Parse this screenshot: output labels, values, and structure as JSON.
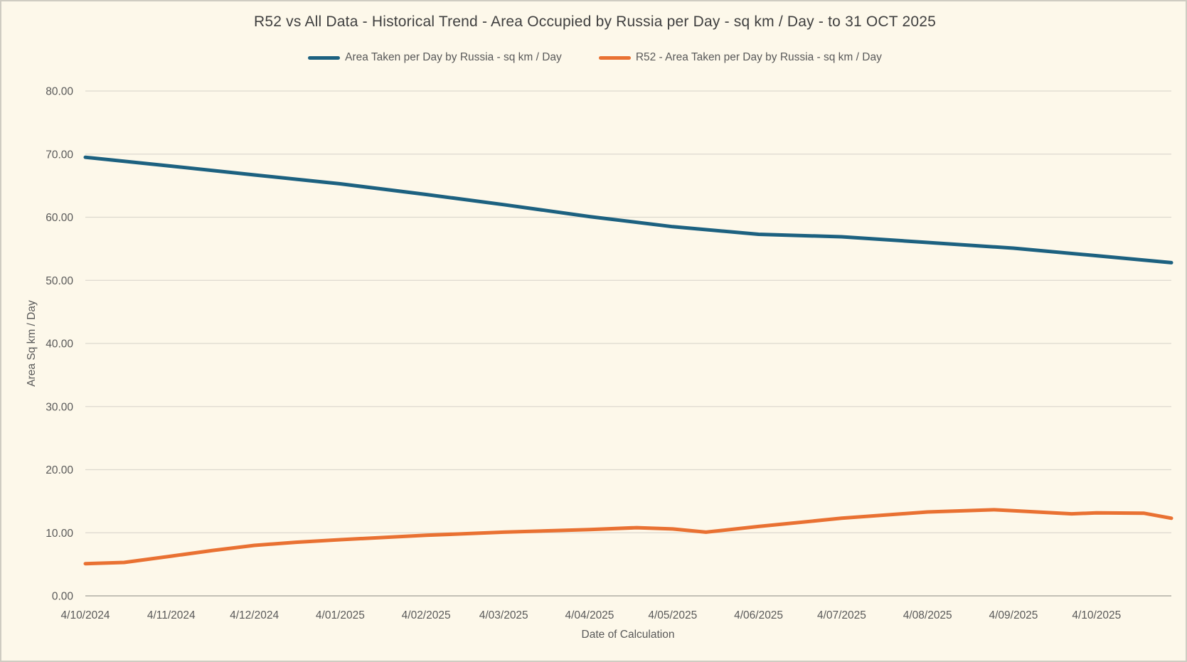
{
  "window": {
    "background_color": "#FDF8EA",
    "border_color": "#CFCCC2",
    "gridline_color": "#DDD9CF",
    "axis_line_color": "#C3C0B6",
    "label_color": "#595959",
    "title_color": "#3F3F3F"
  },
  "chart_data": {
    "type": "line",
    "title": "R52 vs All Data - Historical Trend - Area Occupied by Russia per Day - sq km / Day - to 31 OCT 2025",
    "xlabel": "Date of Calculation",
    "ylabel": "Area Sq km / Day",
    "ylim": [
      0,
      80
    ],
    "y_tick_step": 10,
    "y_tick_labels": [
      "0.00",
      "10.00",
      "20.00",
      "30.00",
      "40.00",
      "50.00",
      "60.00",
      "70.00",
      "80.00"
    ],
    "x_range": [
      "2024-10-04",
      "2025-10-31"
    ],
    "x_ticks": [
      {
        "label": "4/10/2024",
        "date": "2024-10-04"
      },
      {
        "label": "4/11/2024",
        "date": "2024-11-04"
      },
      {
        "label": "4/12/2024",
        "date": "2024-12-04"
      },
      {
        "label": "4/01/2025",
        "date": "2025-01-04"
      },
      {
        "label": "4/02/2025",
        "date": "2025-02-04"
      },
      {
        "label": "4/03/2025",
        "date": "2025-03-04"
      },
      {
        "label": "4/04/2025",
        "date": "2025-04-04"
      },
      {
        "label": "4/05/2025",
        "date": "2025-05-04"
      },
      {
        "label": "4/06/2025",
        "date": "2025-06-04"
      },
      {
        "label": "4/07/2025",
        "date": "2025-07-04"
      },
      {
        "label": "4/08/2025",
        "date": "2025-08-04"
      },
      {
        "label": "4/09/2025",
        "date": "2025-09-04"
      },
      {
        "label": "4/10/2025",
        "date": "2025-10-04"
      }
    ],
    "grid": true,
    "legend_position": "top",
    "series": [
      {
        "name": "Area Taken per Day by Russia - sq km / Day",
        "color": "#1C6180",
        "points": [
          [
            "2024-10-04",
            69.5
          ],
          [
            "2024-11-04",
            68.1
          ],
          [
            "2024-12-04",
            66.7
          ],
          [
            "2025-01-04",
            65.3
          ],
          [
            "2025-02-04",
            63.6
          ],
          [
            "2025-03-04",
            62.0
          ],
          [
            "2025-04-04",
            60.1
          ],
          [
            "2025-05-04",
            58.5
          ],
          [
            "2025-06-04",
            57.3
          ],
          [
            "2025-07-04",
            56.9
          ],
          [
            "2025-08-04",
            56.0
          ],
          [
            "2025-09-04",
            55.1
          ],
          [
            "2025-10-04",
            53.9
          ],
          [
            "2025-10-31",
            52.8
          ]
        ]
      },
      {
        "name": "R52 - Area Taken per Day by Russia - sq km / Day",
        "color": "#E97132",
        "points": [
          [
            "2024-10-04",
            5.1
          ],
          [
            "2024-10-18",
            5.3
          ],
          [
            "2024-11-04",
            6.3
          ],
          [
            "2024-11-19",
            7.2
          ],
          [
            "2024-12-04",
            8.0
          ],
          [
            "2024-12-19",
            8.5
          ],
          [
            "2025-01-04",
            8.9
          ],
          [
            "2025-02-04",
            9.6
          ],
          [
            "2025-03-04",
            10.1
          ],
          [
            "2025-04-04",
            10.5
          ],
          [
            "2025-04-21",
            10.8
          ],
          [
            "2025-05-04",
            10.6
          ],
          [
            "2025-05-16",
            10.1
          ],
          [
            "2025-06-04",
            11.0
          ],
          [
            "2025-07-04",
            12.3
          ],
          [
            "2025-08-04",
            13.3
          ],
          [
            "2025-08-28",
            13.65
          ],
          [
            "2025-09-04",
            13.5
          ],
          [
            "2025-09-25",
            13.0
          ],
          [
            "2025-10-04",
            13.15
          ],
          [
            "2025-10-21",
            13.1
          ],
          [
            "2025-10-31",
            12.3
          ]
        ]
      }
    ]
  }
}
